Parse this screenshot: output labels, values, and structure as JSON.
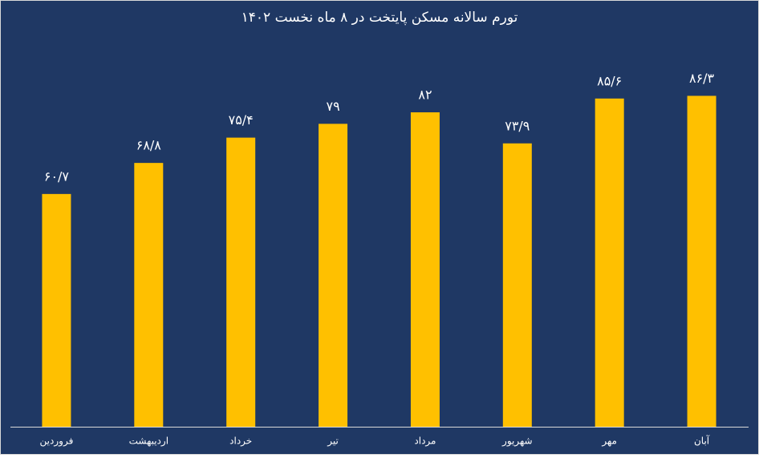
{
  "chart_data": {
    "type": "bar",
    "title": "تورم سالانه مسکن پایتخت در ۸ ماه نخست ۱۴۰۲",
    "categories": [
      "فروردین",
      "اردیبهشت",
      "خرداد",
      "تیر",
      "مرداد",
      "شهریور",
      "مهر",
      "آبان"
    ],
    "values": [
      60.7,
      68.8,
      75.4,
      79,
      82,
      73.9,
      85.6,
      86.3
    ],
    "value_labels": [
      "۶۰/۷",
      "۶۸/۸",
      "۷۵/۴",
      "۷۹",
      "۸۲",
      "۷۳/۹",
      "۸۵/۶",
      "۸۶/۳"
    ],
    "color": "#ffc000"
  }
}
